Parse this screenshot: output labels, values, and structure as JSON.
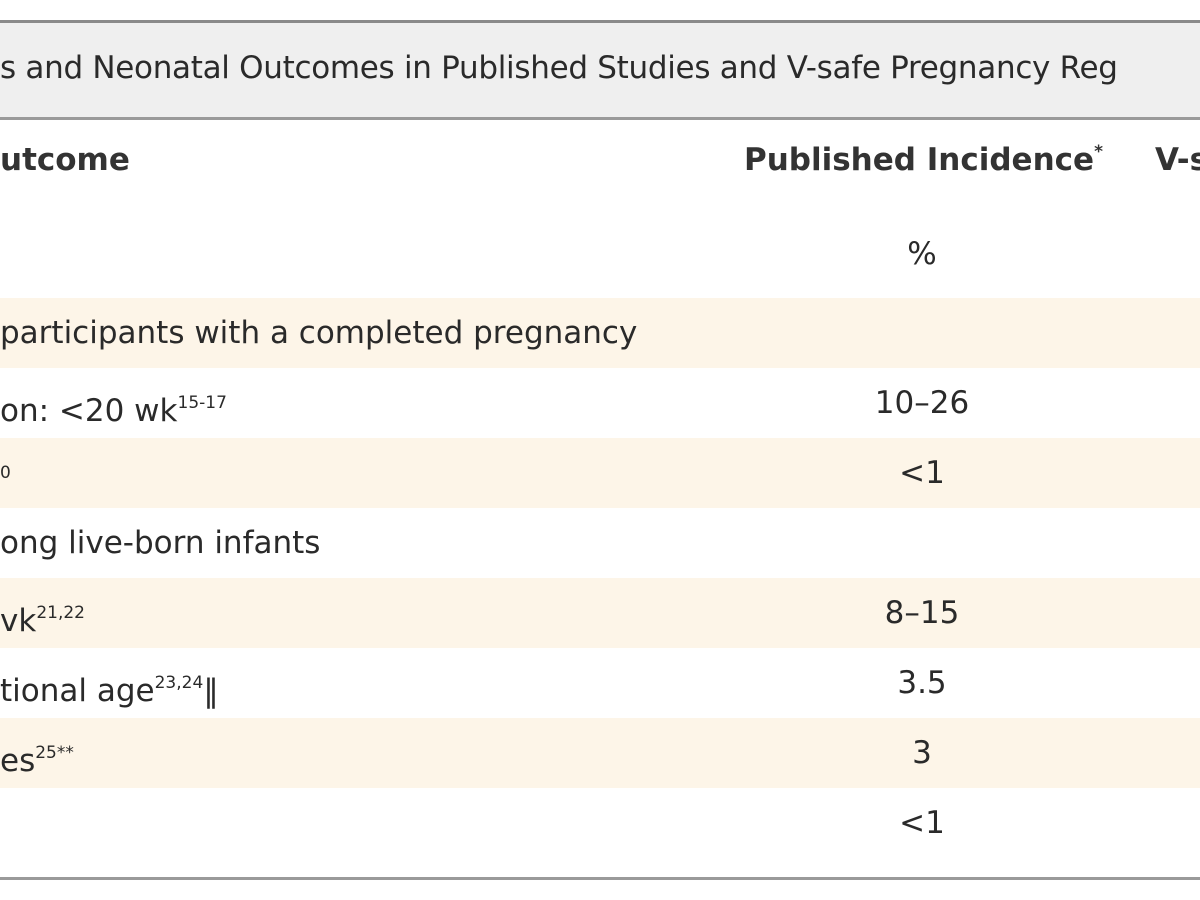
{
  "title": "s and Neonatal Outcomes in Published Studies and V-safe Pregnancy Reg",
  "header": {
    "outcome": "utcome",
    "published": {
      "text": "Published Incidence",
      "sup": "*"
    },
    "vsafe": "V-s"
  },
  "units": {
    "published": "%"
  },
  "rows": [
    {
      "kind": "section",
      "label": "participants with a completed pregnancy"
    },
    {
      "label": "on: <20 wk",
      "sup": "15-17",
      "published": "10–26"
    },
    {
      "sup": "0",
      "published": "<1"
    },
    {
      "kind": "section",
      "label": "ong live-born infants"
    },
    {
      "label": "vk",
      "sup": "21,22",
      "published": "8–15"
    },
    {
      "label": "tional age",
      "sup": "23,24",
      "suffix": "‖",
      "published": "3.5"
    },
    {
      "label": "es",
      "sup": "25**",
      "published": "3"
    },
    {
      "published": "<1"
    }
  ]
}
